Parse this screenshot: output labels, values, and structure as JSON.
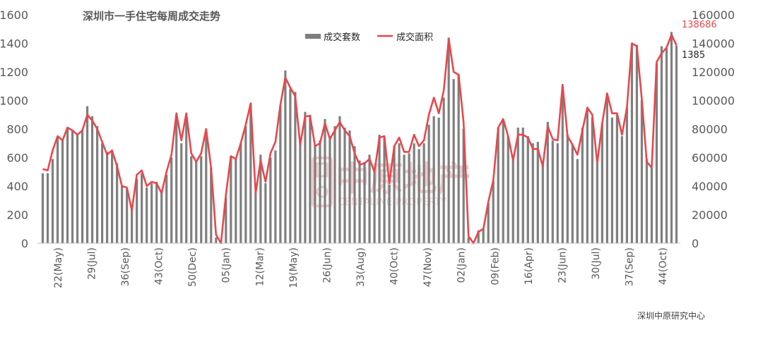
{
  "chart_data": {
    "type": "bar",
    "title": "深圳市一手住宅每周成交走势",
    "source": "深圳中原研究中心",
    "watermark": {
      "cn": "中原地产",
      "en": "CENTALINE PROPERTY"
    },
    "legend_position": "top-center",
    "grid": false,
    "y_left": {
      "min": 0,
      "max": 1600,
      "ticks": [
        "0",
        "200",
        "400",
        "600",
        "800",
        "1000",
        "1200",
        "1400",
        "1600"
      ]
    },
    "y_right": {
      "min": 0,
      "max": 160000,
      "ticks": [
        "0",
        "20000",
        "40000",
        "60000",
        "80000",
        "100000",
        "120000",
        "140000",
        "160000"
      ]
    },
    "x_tick_labels": [
      "22(May)",
      "29(Jul)",
      "36(Sep)",
      "43(Oct)",
      "50(Dec)",
      "05(Jan)",
      "12(Mar)",
      "19(May)",
      "26(Jun)",
      "33(Aug)",
      "40(Oct)",
      "47(Nov)",
      "02(Jan)",
      "09(Feb)",
      "16(Apr)",
      "23(Jun)",
      "30(Jul)",
      "37(Sep)",
      "44(Oct)"
    ],
    "series": [
      {
        "name": "成交套数",
        "kind": "bar",
        "axis": "left",
        "color": "#7f7f7f",
        "values": [
          490,
          490,
          590,
          750,
          720,
          800,
          790,
          770,
          790,
          960,
          890,
          820,
          700,
          640,
          650,
          560,
          400,
          380,
          240,
          450,
          490,
          390,
          420,
          430,
          370,
          480,
          600,
          880,
          700,
          890,
          610,
          570,
          610,
          790,
          530,
          40,
          10,
          320,
          610,
          590,
          700,
          820,
          980,
          350,
          620,
          420,
          600,
          650,
          960,
          1210,
          1080,
          1060,
          710,
          920,
          900,
          690,
          720,
          870,
          750,
          820,
          890,
          810,
          790,
          680,
          580,
          570,
          620,
          510,
          760,
          740,
          410,
          680,
          700,
          620,
          630,
          700,
          660,
          700,
          830,
          890,
          880,
          1020,
          1440,
          1150,
          1180,
          800,
          40,
          10,
          90,
          100,
          280,
          440,
          810,
          860,
          750,
          600,
          810,
          810,
          750,
          700,
          710,
          550,
          850,
          720,
          700,
          1100,
          760,
          690,
          590,
          810,
          950,
          880,
          560,
          840,
          1050,
          880,
          900,
          750,
          950,
          1400,
          1390,
          1000,
          590,
          530,
          1260,
          1380,
          1370,
          1480,
          1385
        ],
        "data_label_last": "1385"
      },
      {
        "name": "成交面积",
        "kind": "line",
        "axis": "right",
        "color": "#e8474b",
        "values": [
          52000,
          51000,
          65000,
          75000,
          72000,
          81000,
          79000,
          76000,
          79000,
          90000,
          86000,
          80000,
          71000,
          62000,
          65000,
          54000,
          40000,
          39000,
          23000,
          48000,
          51000,
          40000,
          43000,
          42000,
          35000,
          50000,
          62000,
          91000,
          72000,
          91000,
          63000,
          57000,
          63000,
          80000,
          53000,
          6000,
          0,
          34000,
          61000,
          59000,
          70000,
          83000,
          98000,
          35000,
          58000,
          43000,
          63000,
          71000,
          97000,
          116000,
          109000,
          103000,
          69000,
          89000,
          89000,
          68000,
          70000,
          84000,
          73000,
          79000,
          85000,
          79000,
          75000,
          63000,
          55000,
          56000,
          59000,
          50000,
          74000,
          75000,
          42000,
          68000,
          74000,
          64000,
          64000,
          76000,
          68000,
          72000,
          90000,
          102000,
          91000,
          107000,
          143000,
          120000,
          118000,
          85000,
          5000,
          0,
          8000,
          10000,
          29000,
          44000,
          81000,
          87000,
          75000,
          58000,
          76000,
          76000,
          74000,
          66000,
          66000,
          54000,
          82000,
          73000,
          72000,
          111000,
          75000,
          69000,
          62000,
          79000,
          95000,
          90000,
          56000,
          84000,
          105000,
          91000,
          91000,
          76000,
          95000,
          140000,
          138000,
          101000,
          57000,
          53000,
          127000,
          133000,
          137000,
          146000,
          138686
        ],
        "data_label_last": "138686"
      }
    ]
  }
}
